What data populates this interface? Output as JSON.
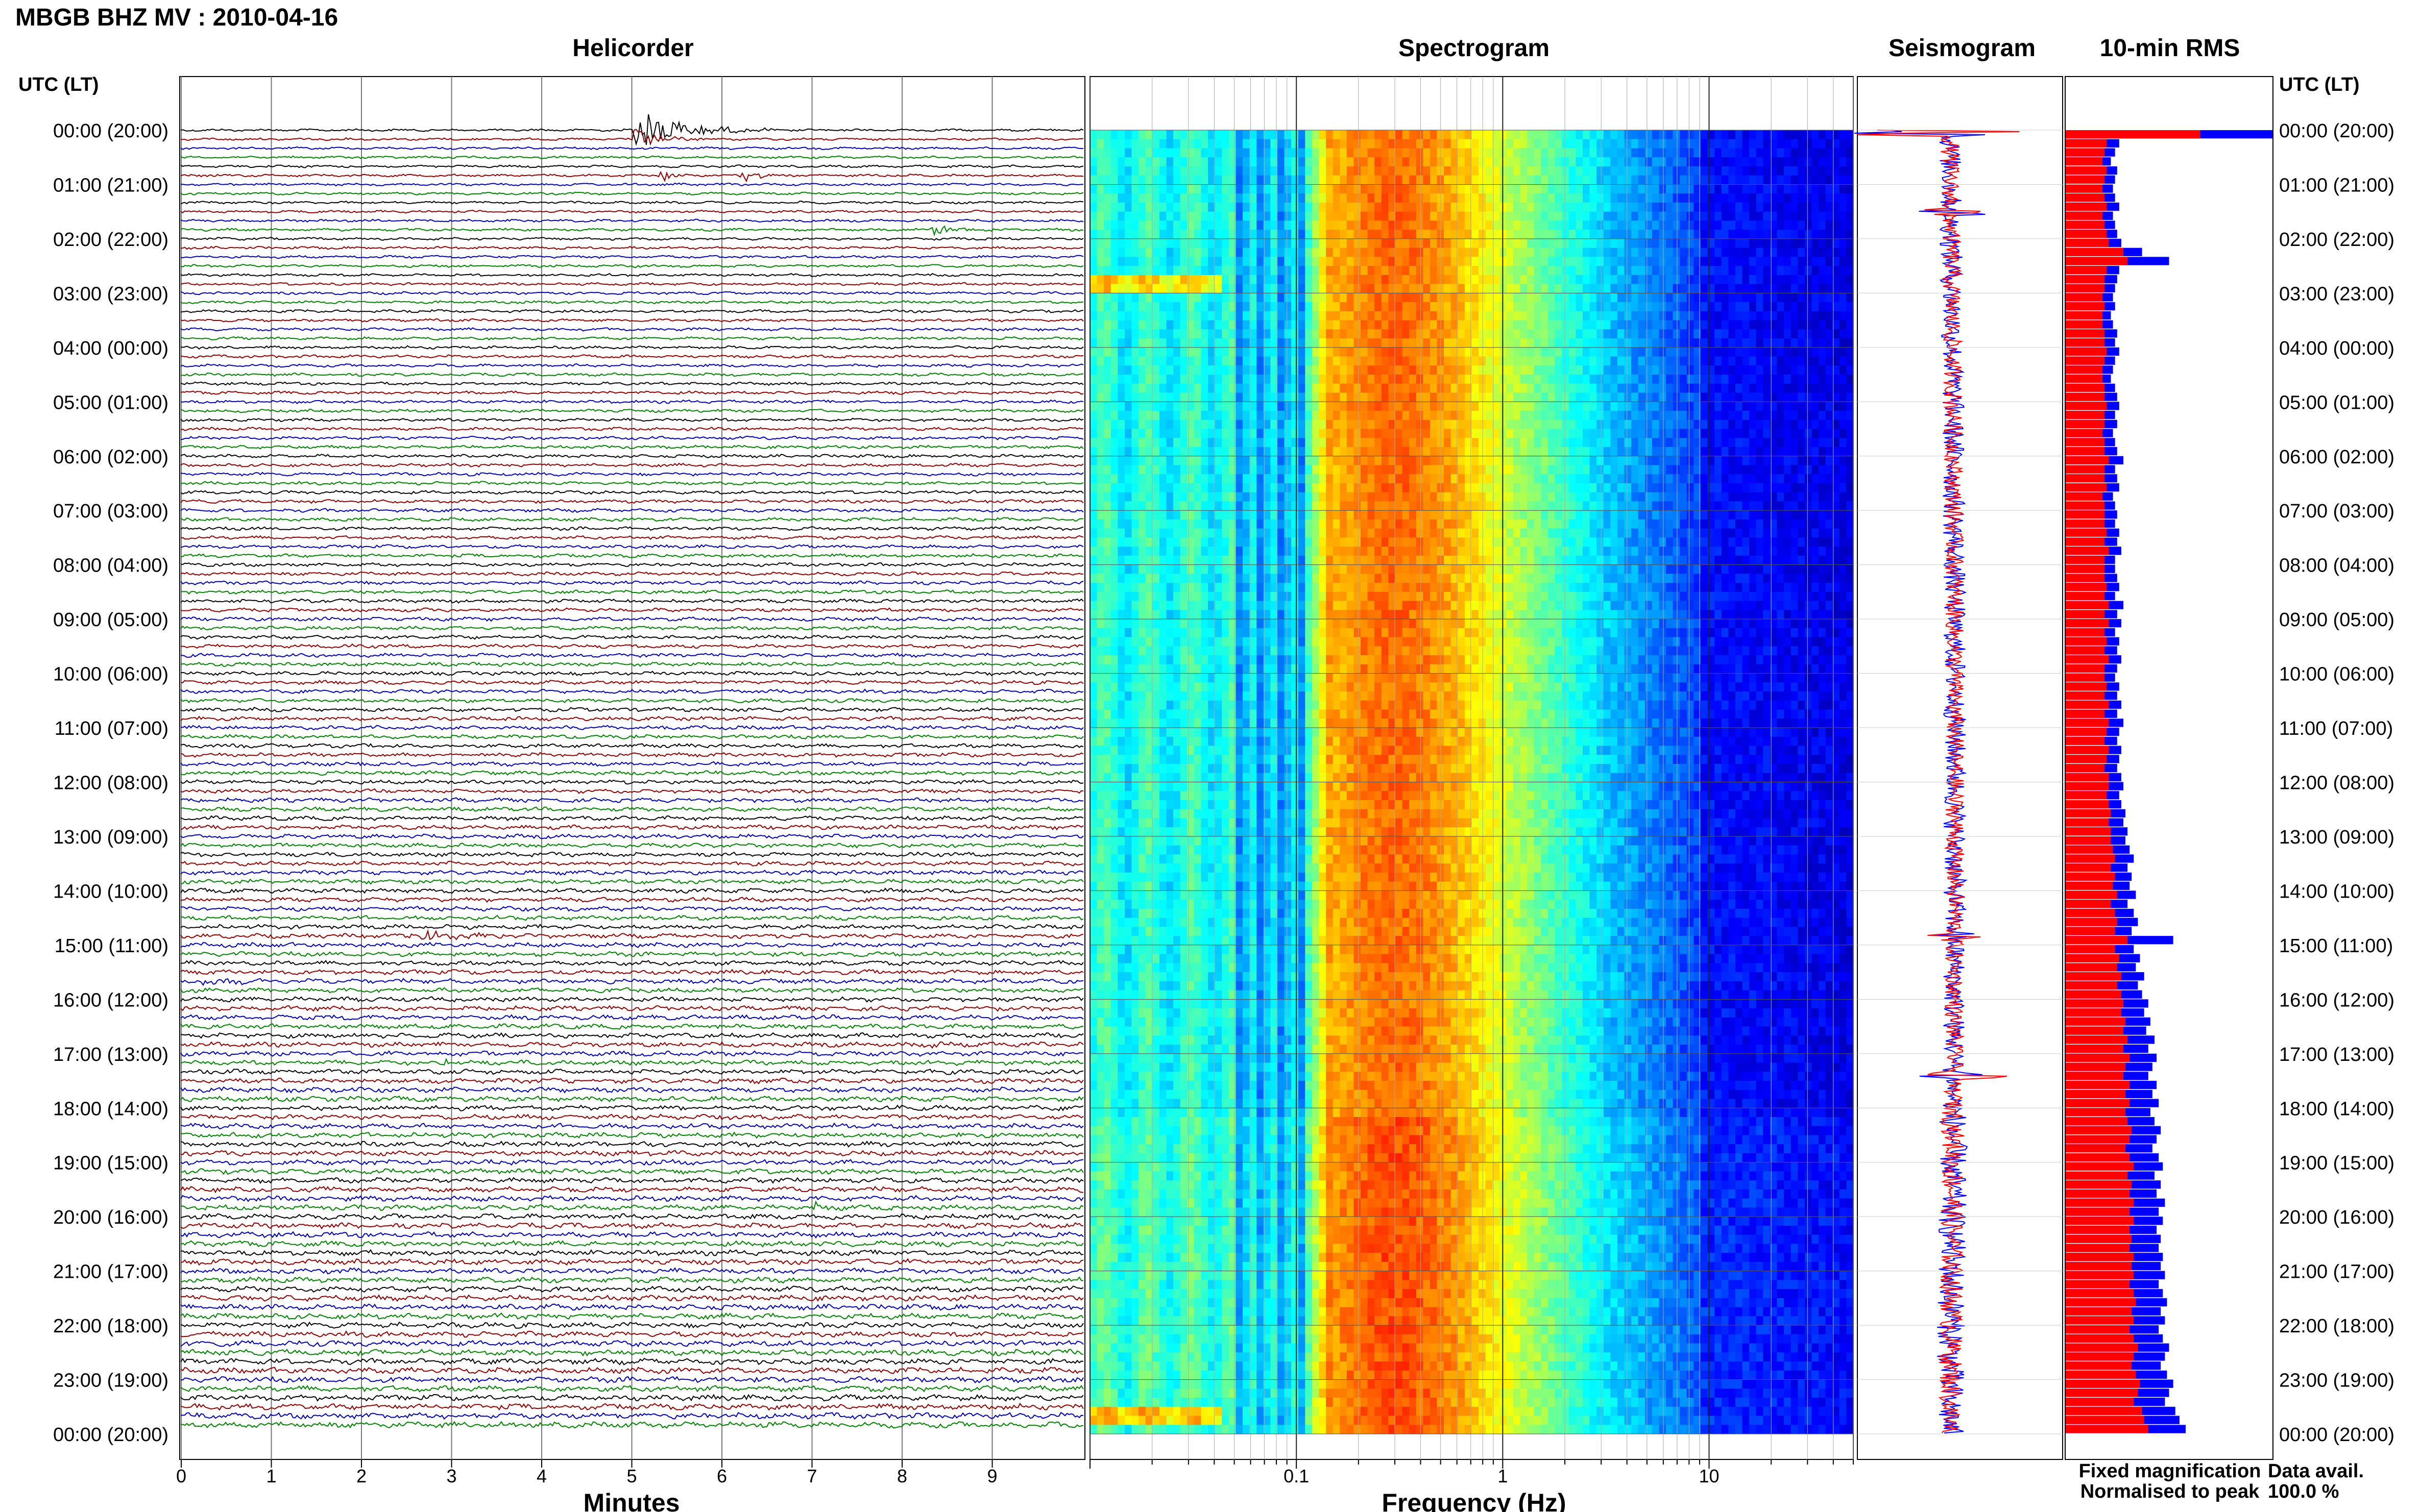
{
  "header": {
    "station_title": "MBGB BHZ MV : 2010-04-16"
  },
  "panels": {
    "helicorder_title": "Helicorder",
    "spectrogram_title": "Spectrogram",
    "seismogram_title": "Seismogram",
    "rms_title": "10-min RMS"
  },
  "axes": {
    "time_header_left": "UTC (LT)",
    "time_header_right": "UTC (LT)",
    "minutes_label": "Minutes",
    "frequency_label": "Frequency (Hz)"
  },
  "legend": {
    "fixed_label": "Fixed magnification",
    "normalised_label": "Normalised to peak",
    "fixed_color": "#0000ff",
    "normalised_color": "#ff0000"
  },
  "availability": {
    "label": "Data avail.",
    "value": "100.0 %"
  },
  "chart_data": {
    "type": "heatmap",
    "title": "MBGB BHZ MV : 2010-04-16",
    "time_labels": [
      "00:00 (20:00)",
      "01:00 (21:00)",
      "02:00 (22:00)",
      "03:00 (23:00)",
      "04:00 (00:00)",
      "05:00 (01:00)",
      "06:00 (02:00)",
      "07:00 (03:00)",
      "08:00 (04:00)",
      "09:00 (05:00)",
      "10:00 (06:00)",
      "11:00 (07:00)",
      "12:00 (08:00)",
      "13:00 (09:00)",
      "14:00 (10:00)",
      "15:00 (11:00)",
      "16:00 (12:00)",
      "17:00 (13:00)",
      "18:00 (14:00)",
      "19:00 (15:00)",
      "20:00 (16:00)",
      "21:00 (17:00)",
      "22:00 (18:00)",
      "23:00 (19:00)",
      "00:00 (20:00)"
    ],
    "helicorder": {
      "xlabel": "Minutes",
      "xlim": [
        0,
        10
      ],
      "x_ticks": [
        "0",
        "1",
        "2",
        "3",
        "4",
        "5",
        "6",
        "7",
        "8",
        "9"
      ],
      "trace_colors": [
        "#000000",
        "#8b0000",
        "#0000aa",
        "#008000"
      ],
      "line_minutes": 10,
      "events": [
        {
          "row": 0,
          "start_min": 5.0,
          "duration_min": 1.6,
          "amp": 3.2,
          "color": "#000000"
        },
        {
          "row": 1,
          "start_min": 5.0,
          "duration_min": 0.8,
          "amp": 1.6,
          "color": "#000000"
        },
        {
          "row": 5,
          "start_min": 5.3,
          "duration_min": 0.3,
          "amp": 1.2,
          "color": "#8b0000"
        },
        {
          "row": 5,
          "start_min": 6.2,
          "duration_min": 0.5,
          "amp": 1.4,
          "color": "#8b0000"
        },
        {
          "row": 11,
          "start_min": 8.3,
          "duration_min": 1.0,
          "amp": 0.7,
          "color": "#000000"
        },
        {
          "row": 89,
          "start_min": 2.5,
          "duration_min": 1.8,
          "amp": 0.8,
          "color": "#8b0000"
        },
        {
          "row": 94,
          "start_min": 0.2,
          "duration_min": 1.3,
          "amp": 0.6,
          "color": "#0000aa"
        },
        {
          "row": 101,
          "start_min": 8.3,
          "duration_min": 0.9,
          "amp": 0.5,
          "color": "#0000aa"
        },
        {
          "row": 103,
          "start_min": 2.9,
          "duration_min": 0.15,
          "amp": 1.3,
          "color": "#000000"
        },
        {
          "row": 119,
          "start_min": 7.0,
          "duration_min": 0.4,
          "amp": 0.6,
          "color": "#008000"
        }
      ]
    },
    "spectrogram": {
      "xlabel": "Frequency (Hz)",
      "scale": "log",
      "xlim": [
        0.01,
        50
      ],
      "x_ticks": [
        0.1,
        1,
        10
      ],
      "x_tick_labels": [
        "0.1",
        "1",
        "10"
      ],
      "peak_frequency_hz": 0.3,
      "colormap": "jet"
    },
    "seismogram": {
      "spikes": [
        {
          "hour": 0.05,
          "amp": 0.9
        },
        {
          "hour": 1.5,
          "amp": 0.5
        },
        {
          "hour": 14.85,
          "amp": 0.25
        },
        {
          "hour": 17.4,
          "amp": 0.45
        }
      ]
    },
    "rms": {
      "series": [
        {
          "name": "Fixed magnification",
          "color": "#0000ff"
        },
        {
          "name": "Normalised to peak",
          "color": "#ff0000"
        }
      ],
      "blue_values": [
        1.0,
        0.26,
        0.24,
        0.22,
        0.25,
        0.24,
        0.23,
        0.24,
        0.26,
        0.23,
        0.24,
        0.25,
        0.27,
        0.37,
        0.5,
        0.26,
        0.25,
        0.24,
        0.23,
        0.24,
        0.22,
        0.23,
        0.25,
        0.24,
        0.26,
        0.24,
        0.23,
        0.22,
        0.24,
        0.25,
        0.26,
        0.24,
        0.25,
        0.23,
        0.24,
        0.25,
        0.28,
        0.24,
        0.25,
        0.26,
        0.23,
        0.24,
        0.25,
        0.24,
        0.26,
        0.25,
        0.27,
        0.24,
        0.24,
        0.25,
        0.26,
        0.24,
        0.28,
        0.25,
        0.27,
        0.24,
        0.26,
        0.25,
        0.27,
        0.25,
        0.24,
        0.26,
        0.25,
        0.27,
        0.25,
        0.28,
        0.26,
        0.25,
        0.27,
        0.26,
        0.25,
        0.27,
        0.28,
        0.26,
        0.27,
        0.29,
        0.28,
        0.3,
        0.29,
        0.31,
        0.33,
        0.3,
        0.32,
        0.31,
        0.34,
        0.3,
        0.33,
        0.35,
        0.32,
        0.52,
        0.33,
        0.36,
        0.34,
        0.38,
        0.35,
        0.37,
        0.4,
        0.38,
        0.41,
        0.39,
        0.43,
        0.4,
        0.44,
        0.42,
        0.4,
        0.44,
        0.42,
        0.45,
        0.41,
        0.43,
        0.46,
        0.44,
        0.42,
        0.45,
        0.47,
        0.43,
        0.46,
        0.44,
        0.48,
        0.45,
        0.47,
        0.44,
        0.46,
        0.45,
        0.47,
        0.46,
        0.48,
        0.45,
        0.47,
        0.49,
        0.46,
        0.48,
        0.45,
        0.47,
        0.5,
        0.48,
        0.46,
        0.49,
        0.52,
        0.5,
        0.48,
        0.53,
        0.55,
        0.58
      ],
      "red_values": [
        0.65,
        0.2,
        0.19,
        0.18,
        0.2,
        0.19,
        0.18,
        0.19,
        0.2,
        0.18,
        0.19,
        0.2,
        0.21,
        0.28,
        0.3,
        0.2,
        0.19,
        0.19,
        0.18,
        0.19,
        0.18,
        0.18,
        0.19,
        0.19,
        0.2,
        0.19,
        0.18,
        0.18,
        0.19,
        0.19,
        0.2,
        0.19,
        0.19,
        0.18,
        0.19,
        0.19,
        0.21,
        0.19,
        0.19,
        0.2,
        0.18,
        0.19,
        0.19,
        0.19,
        0.2,
        0.19,
        0.21,
        0.19,
        0.19,
        0.19,
        0.2,
        0.19,
        0.21,
        0.19,
        0.21,
        0.19,
        0.2,
        0.19,
        0.21,
        0.19,
        0.19,
        0.2,
        0.19,
        0.21,
        0.19,
        0.21,
        0.2,
        0.19,
        0.21,
        0.2,
        0.19,
        0.21,
        0.21,
        0.2,
        0.21,
        0.22,
        0.21,
        0.22,
        0.22,
        0.23,
        0.24,
        0.22,
        0.24,
        0.23,
        0.25,
        0.22,
        0.24,
        0.25,
        0.24,
        0.3,
        0.24,
        0.26,
        0.25,
        0.27,
        0.25,
        0.27,
        0.28,
        0.27,
        0.29,
        0.28,
        0.3,
        0.28,
        0.31,
        0.29,
        0.28,
        0.31,
        0.29,
        0.31,
        0.29,
        0.3,
        0.32,
        0.31,
        0.29,
        0.31,
        0.33,
        0.3,
        0.32,
        0.31,
        0.33,
        0.31,
        0.33,
        0.31,
        0.32,
        0.31,
        0.33,
        0.32,
        0.33,
        0.31,
        0.33,
        0.34,
        0.32,
        0.33,
        0.31,
        0.33,
        0.35,
        0.33,
        0.32,
        0.34,
        0.36,
        0.35,
        0.33,
        0.37,
        0.38,
        0.4
      ]
    }
  }
}
